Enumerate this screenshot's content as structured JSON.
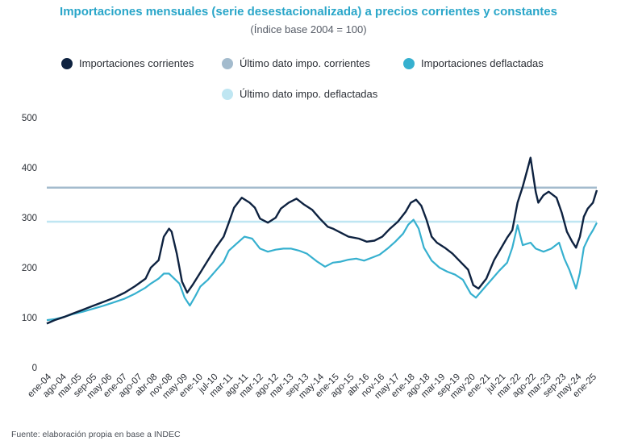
{
  "chart_data": {
    "type": "line",
    "title": "Importaciones mensuales (serie desestacionalizada) a precios corrientes y constantes",
    "subtitle": "(Índice base 2004 = 100)",
    "source": "Fuente: elaboración propia en base a INDEC",
    "ylim": [
      0,
      500
    ],
    "yticks": [
      "500",
      "400",
      "300",
      "200",
      "100",
      "0"
    ],
    "grid": false,
    "legend_position": "top",
    "xticks": [
      "ene-04",
      "ago-04",
      "mar-05",
      "sep-05",
      "may-06",
      "ene-07",
      "ago-07",
      "abr-08",
      "nov-08",
      "may-09",
      "ene-10",
      "jul-10",
      "mar-11",
      "ago-11",
      "mar-12",
      "ago-12",
      "mar-13",
      "sep-13",
      "may-14",
      "ene-15",
      "ago-15",
      "abr-16",
      "nov-16",
      "may-17",
      "ene-18",
      "ago-18",
      "mar-19",
      "sep-19",
      "may-20",
      "ene-21",
      "jul-21",
      "mar-22",
      "ago-22",
      "mar-23",
      "sep-23",
      "may-24",
      "ene-25"
    ],
    "colors": {
      "corrientes": "#0e2240",
      "ultimo_corrientes": "#a3bbcd",
      "deflactadas": "#36b0cf",
      "ultimo_deflactadas": "#bfe6f2"
    },
    "series": [
      {
        "name": "Importaciones corrientes",
        "points": [
          [
            2004.0,
            88
          ],
          [
            2004.3,
            95
          ],
          [
            2004.7,
            102
          ],
          [
            2005.0,
            108
          ],
          [
            2005.4,
            116
          ],
          [
            2005.8,
            124
          ],
          [
            2006.2,
            132
          ],
          [
            2006.6,
            140
          ],
          [
            2007.0,
            150
          ],
          [
            2007.4,
            163
          ],
          [
            2007.8,
            178
          ],
          [
            2008.0,
            200
          ],
          [
            2008.3,
            215
          ],
          [
            2008.5,
            262
          ],
          [
            2008.7,
            278
          ],
          [
            2008.8,
            272
          ],
          [
            2009.0,
            228
          ],
          [
            2009.2,
            172
          ],
          [
            2009.4,
            150
          ],
          [
            2009.6,
            165
          ],
          [
            2009.9,
            190
          ],
          [
            2010.2,
            215
          ],
          [
            2010.5,
            240
          ],
          [
            2010.8,
            262
          ],
          [
            2011.0,
            290
          ],
          [
            2011.2,
            320
          ],
          [
            2011.5,
            340
          ],
          [
            2011.8,
            330
          ],
          [
            2012.0,
            320
          ],
          [
            2012.2,
            298
          ],
          [
            2012.5,
            290
          ],
          [
            2012.8,
            300
          ],
          [
            2013.0,
            318
          ],
          [
            2013.3,
            330
          ],
          [
            2013.6,
            338
          ],
          [
            2013.9,
            326
          ],
          [
            2014.2,
            316
          ],
          [
            2014.5,
            298
          ],
          [
            2014.8,
            282
          ],
          [
            2015.0,
            278
          ],
          [
            2015.3,
            270
          ],
          [
            2015.6,
            262
          ],
          [
            2016.0,
            258
          ],
          [
            2016.3,
            252
          ],
          [
            2016.6,
            254
          ],
          [
            2016.9,
            262
          ],
          [
            2017.2,
            278
          ],
          [
            2017.5,
            292
          ],
          [
            2017.8,
            312
          ],
          [
            2018.0,
            330
          ],
          [
            2018.2,
            336
          ],
          [
            2018.4,
            324
          ],
          [
            2018.6,
            296
          ],
          [
            2018.8,
            262
          ],
          [
            2019.0,
            250
          ],
          [
            2019.3,
            240
          ],
          [
            2019.6,
            228
          ],
          [
            2019.9,
            212
          ],
          [
            2020.2,
            196
          ],
          [
            2020.4,
            165
          ],
          [
            2020.6,
            158
          ],
          [
            2020.9,
            178
          ],
          [
            2021.2,
            215
          ],
          [
            2021.5,
            242
          ],
          [
            2021.7,
            260
          ],
          [
            2021.9,
            275
          ],
          [
            2022.1,
            330
          ],
          [
            2022.3,
            362
          ],
          [
            2022.5,
            400
          ],
          [
            2022.6,
            420
          ],
          [
            2022.8,
            352
          ],
          [
            2022.9,
            330
          ],
          [
            2023.1,
            345
          ],
          [
            2023.3,
            352
          ],
          [
            2023.6,
            340
          ],
          [
            2023.8,
            310
          ],
          [
            2024.0,
            272
          ],
          [
            2024.2,
            252
          ],
          [
            2024.35,
            240
          ],
          [
            2024.5,
            262
          ],
          [
            2024.65,
            302
          ],
          [
            2024.8,
            318
          ],
          [
            2025.0,
            330
          ],
          [
            2025.15,
            355
          ]
        ]
      },
      {
        "name": "Último dato impo. corrientes",
        "points": [
          [
            2004.0,
            360
          ],
          [
            2025.15,
            360
          ]
        ]
      },
      {
        "name": "Importaciones deflactadas",
        "points": [
          [
            2004.0,
            95
          ],
          [
            2004.3,
            97
          ],
          [
            2004.7,
            102
          ],
          [
            2005.0,
            107
          ],
          [
            2005.4,
            112
          ],
          [
            2005.8,
            118
          ],
          [
            2006.2,
            124
          ],
          [
            2006.6,
            131
          ],
          [
            2007.0,
            138
          ],
          [
            2007.4,
            148
          ],
          [
            2007.8,
            160
          ],
          [
            2008.0,
            168
          ],
          [
            2008.3,
            178
          ],
          [
            2008.5,
            188
          ],
          [
            2008.7,
            188
          ],
          [
            2008.9,
            178
          ],
          [
            2009.1,
            168
          ],
          [
            2009.3,
            140
          ],
          [
            2009.5,
            124
          ],
          [
            2009.7,
            142
          ],
          [
            2009.9,
            162
          ],
          [
            2010.2,
            176
          ],
          [
            2010.5,
            194
          ],
          [
            2010.8,
            212
          ],
          [
            2011.0,
            234
          ],
          [
            2011.3,
            248
          ],
          [
            2011.6,
            262
          ],
          [
            2011.9,
            258
          ],
          [
            2012.2,
            238
          ],
          [
            2012.5,
            232
          ],
          [
            2012.8,
            236
          ],
          [
            2013.1,
            238
          ],
          [
            2013.4,
            238
          ],
          [
            2013.7,
            234
          ],
          [
            2014.0,
            228
          ],
          [
            2014.4,
            212
          ],
          [
            2014.7,
            202
          ],
          [
            2015.0,
            210
          ],
          [
            2015.3,
            212
          ],
          [
            2015.6,
            216
          ],
          [
            2015.9,
            218
          ],
          [
            2016.2,
            214
          ],
          [
            2016.5,
            220
          ],
          [
            2016.8,
            226
          ],
          [
            2017.1,
            238
          ],
          [
            2017.4,
            252
          ],
          [
            2017.7,
            268
          ],
          [
            2017.9,
            286
          ],
          [
            2018.1,
            296
          ],
          [
            2018.3,
            278
          ],
          [
            2018.5,
            240
          ],
          [
            2018.8,
            214
          ],
          [
            2019.1,
            200
          ],
          [
            2019.4,
            192
          ],
          [
            2019.7,
            186
          ],
          [
            2020.0,
            176
          ],
          [
            2020.3,
            148
          ],
          [
            2020.5,
            140
          ],
          [
            2020.8,
            158
          ],
          [
            2021.1,
            176
          ],
          [
            2021.4,
            194
          ],
          [
            2021.7,
            210
          ],
          [
            2021.9,
            240
          ],
          [
            2022.1,
            285
          ],
          [
            2022.3,
            245
          ],
          [
            2022.6,
            250
          ],
          [
            2022.8,
            238
          ],
          [
            2023.1,
            232
          ],
          [
            2023.4,
            238
          ],
          [
            2023.7,
            250
          ],
          [
            2023.9,
            218
          ],
          [
            2024.1,
            195
          ],
          [
            2024.35,
            158
          ],
          [
            2024.5,
            190
          ],
          [
            2024.65,
            240
          ],
          [
            2024.85,
            262
          ],
          [
            2025.0,
            275
          ],
          [
            2025.15,
            290
          ]
        ]
      },
      {
        "name": "Último dato impo. deflactadas",
        "points": [
          [
            2004.0,
            292
          ],
          [
            2025.15,
            292
          ]
        ]
      }
    ]
  }
}
